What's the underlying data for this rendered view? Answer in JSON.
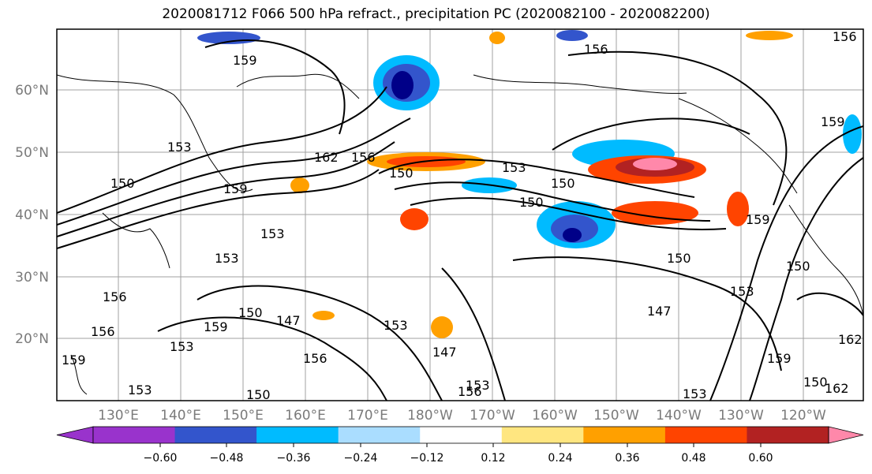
{
  "title": "2020081712 F066 500 hPa refract., precipitation PC (2020082100 - 2020082200)",
  "lat_labels": [
    "60°N",
    "50°N",
    "40°N",
    "30°N",
    "20°N"
  ],
  "lon_labels": [
    "130°E",
    "140°E",
    "150°E",
    "160°E",
    "170°E",
    "180°W",
    "170°W",
    "160°W",
    "150°W",
    "140°W",
    "130°W",
    "120°W"
  ],
  "colorbar": {
    "ticks": [
      "−0.60",
      "−0.48",
      "−0.36",
      "−0.24",
      "−0.12",
      "0.12",
      "0.24",
      "0.36",
      "0.48",
      "0.60"
    ],
    "colors": [
      "#9933cc",
      "#000088",
      "#3355cc",
      "#00bbff",
      "#aaddff",
      "#ffffff",
      "#ffe680",
      "#ffa000",
      "#ff4400",
      "#b22222",
      "#ff88aa"
    ]
  },
  "contour_labels": [
    "159",
    "156",
    "153",
    "150",
    "162",
    "156",
    "150",
    "153",
    "150",
    "159",
    "150",
    "159",
    "150",
    "153",
    "156",
    "153",
    "150",
    "147",
    "153",
    "150",
    "159",
    "153",
    "156",
    "153",
    "147",
    "150",
    "147",
    "156",
    "153",
    "156",
    "159",
    "153",
    "153",
    "150",
    "159",
    "162",
    "162",
    "156",
    "159"
  ]
}
